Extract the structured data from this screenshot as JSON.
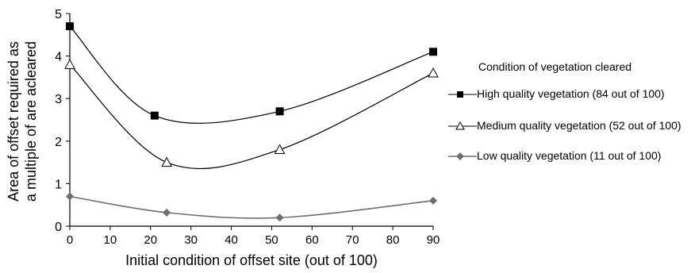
{
  "chart_data": {
    "type": "line",
    "xlabel": "Initial condition of offset site (out of 100)",
    "ylabel": "Area of offset required as a multiple of are acleared",
    "xlim": [
      0,
      90
    ],
    "ylim": [
      0,
      5
    ],
    "xticks": [
      0,
      10,
      20,
      30,
      40,
      50,
      60,
      70,
      80,
      90
    ],
    "yticks": [
      0,
      1,
      2,
      3,
      4,
      5
    ],
    "grid": false,
    "legend_title": "Condition of vegetation cleared",
    "legend_position": "right",
    "series": [
      {
        "name": "High quality vegetation (84 out of 100)",
        "marker": "square",
        "color": "#000000",
        "points": [
          [
            0,
            4.7
          ],
          [
            21,
            2.6
          ],
          [
            52,
            2.7
          ],
          [
            90,
            4.1
          ]
        ]
      },
      {
        "name": "Medium quality vegetation (52 out of 100)",
        "marker": "triangle",
        "color": "#000000",
        "points": [
          [
            0,
            3.8
          ],
          [
            24,
            1.5
          ],
          [
            52,
            1.8
          ],
          [
            90,
            3.6
          ]
        ]
      },
      {
        "name": "Low quality vegetation (11 out of 100)",
        "marker": "diamond",
        "color": "#6e6e6e",
        "points": [
          [
            0,
            0.7
          ],
          [
            24,
            0.32
          ],
          [
            52,
            0.2
          ],
          [
            90,
            0.6
          ]
        ]
      }
    ]
  }
}
